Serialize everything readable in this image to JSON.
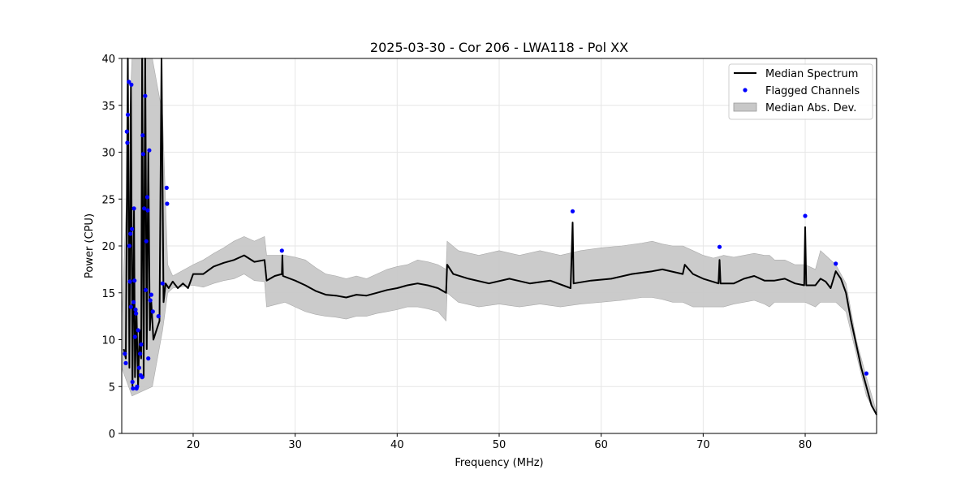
{
  "chart_data": {
    "type": "line",
    "title": "2025-03-30 - Cor 206 - LWA118 - Pol XX",
    "xlabel": "Frequency (MHz)",
    "ylabel": "Power (CPU)",
    "xlim": [
      13,
      87
    ],
    "ylim": [
      0,
      40
    ],
    "xticks": [
      20,
      30,
      40,
      50,
      60,
      70,
      80
    ],
    "yticks": [
      0,
      5,
      10,
      15,
      20,
      25,
      30,
      35,
      40
    ],
    "grid": true,
    "legend_position": "top-right",
    "legend": [
      {
        "label": "Median Spectrum",
        "kind": "line",
        "color": "#000000"
      },
      {
        "label": "Flagged Channels",
        "kind": "marker",
        "color": "#0000ff"
      },
      {
        "label": "Median Abs. Dev.",
        "kind": "patch",
        "color": "#c8c8c8"
      }
    ],
    "series": [
      {
        "name": "Median Spectrum",
        "color": "#000000",
        "points": [
          [
            13.2,
            9
          ],
          [
            13.4,
            8
          ],
          [
            13.6,
            40
          ],
          [
            13.75,
            7
          ],
          [
            13.9,
            37
          ],
          [
            14.05,
            5
          ],
          [
            14.2,
            24
          ],
          [
            14.3,
            6
          ],
          [
            14.45,
            13
          ],
          [
            14.6,
            5
          ],
          [
            14.75,
            11
          ],
          [
            14.9,
            8
          ],
          [
            15.0,
            40
          ],
          [
            15.15,
            6
          ],
          [
            15.3,
            40
          ],
          [
            15.45,
            9
          ],
          [
            15.6,
            30
          ],
          [
            15.75,
            11
          ],
          [
            15.9,
            14
          ],
          [
            16.1,
            10
          ],
          [
            16.4,
            11
          ],
          [
            16.7,
            12
          ],
          [
            16.9,
            40
          ],
          [
            17.1,
            14
          ],
          [
            17.3,
            16
          ],
          [
            17.6,
            15.5
          ],
          [
            18,
            16.2
          ],
          [
            18.5,
            15.5
          ],
          [
            19,
            16
          ],
          [
            19.5,
            15.5
          ],
          [
            20,
            17
          ],
          [
            21,
            17
          ],
          [
            22,
            17.8
          ],
          [
            23,
            18.2
          ],
          [
            24,
            18.5
          ],
          [
            25,
            19
          ],
          [
            26,
            18.3
          ],
          [
            27,
            18.5
          ],
          [
            27.2,
            16.3
          ],
          [
            28,
            16.8
          ],
          [
            28.7,
            17
          ],
          [
            28.75,
            19
          ],
          [
            28.8,
            16.8
          ],
          [
            30,
            16.3
          ],
          [
            31,
            15.8
          ],
          [
            32,
            15.2
          ],
          [
            33,
            14.8
          ],
          [
            34,
            14.7
          ],
          [
            35,
            14.5
          ],
          [
            36,
            14.8
          ],
          [
            37,
            14.7
          ],
          [
            38,
            15
          ],
          [
            39,
            15.3
          ],
          [
            40,
            15.5
          ],
          [
            41,
            15.8
          ],
          [
            42,
            16
          ],
          [
            43,
            15.8
          ],
          [
            44,
            15.5
          ],
          [
            44.8,
            15
          ],
          [
            44.9,
            18
          ],
          [
            45.5,
            17
          ],
          [
            47,
            16.5
          ],
          [
            49,
            16
          ],
          [
            51,
            16.5
          ],
          [
            53,
            16
          ],
          [
            55,
            16.3
          ],
          [
            57,
            15.5
          ],
          [
            57.2,
            22.5
          ],
          [
            57.3,
            16
          ],
          [
            59,
            16.3
          ],
          [
            61,
            16.5
          ],
          [
            63,
            17
          ],
          [
            65,
            17.3
          ],
          [
            66,
            17.5
          ],
          [
            68,
            17
          ],
          [
            68.2,
            18
          ],
          [
            69,
            17
          ],
          [
            70,
            16.5
          ],
          [
            71.5,
            16
          ],
          [
            71.6,
            18.5
          ],
          [
            71.7,
            16
          ],
          [
            73,
            16
          ],
          [
            74,
            16.5
          ],
          [
            75,
            16.8
          ],
          [
            76,
            16.3
          ],
          [
            77,
            16.3
          ],
          [
            78,
            16.5
          ],
          [
            79,
            16
          ],
          [
            79.9,
            15.8
          ],
          [
            80,
            22
          ],
          [
            80.1,
            15.8
          ],
          [
            81,
            15.8
          ],
          [
            81.5,
            16.5
          ],
          [
            82,
            16.2
          ],
          [
            82.5,
            15.5
          ],
          [
            83,
            17.3
          ],
          [
            83.5,
            16.5
          ],
          [
            84,
            15
          ],
          [
            84.5,
            12
          ],
          [
            85,
            9.5
          ],
          [
            85.5,
            7
          ],
          [
            86,
            5
          ],
          [
            86.5,
            3
          ],
          [
            87,
            2
          ]
        ]
      },
      {
        "name": "Median Abs. Dev.",
        "color": "#c8c8c8",
        "upper": [
          [
            13,
            12
          ],
          [
            14,
            40
          ],
          [
            16,
            40
          ],
          [
            17,
            34
          ],
          [
            17.5,
            18
          ],
          [
            18,
            16.8
          ],
          [
            20,
            18
          ],
          [
            21,
            18.5
          ],
          [
            22,
            19.2
          ],
          [
            23,
            19.8
          ],
          [
            24,
            20.5
          ],
          [
            25,
            21
          ],
          [
            26,
            20.5
          ],
          [
            27,
            21
          ],
          [
            27.2,
            19
          ],
          [
            29,
            19
          ],
          [
            30,
            18.8
          ],
          [
            31,
            18.5
          ],
          [
            32,
            17.7
          ],
          [
            33,
            17
          ],
          [
            34,
            16.8
          ],
          [
            35,
            16.5
          ],
          [
            36,
            16.8
          ],
          [
            37,
            16.5
          ],
          [
            38,
            17
          ],
          [
            39,
            17.5
          ],
          [
            40,
            17.8
          ],
          [
            41,
            18
          ],
          [
            42,
            18.5
          ],
          [
            43,
            18.3
          ],
          [
            44,
            18
          ],
          [
            44.8,
            17.5
          ],
          [
            44.9,
            20.5
          ],
          [
            46,
            19.5
          ],
          [
            48,
            19
          ],
          [
            50,
            19.5
          ],
          [
            52,
            19
          ],
          [
            54,
            19.5
          ],
          [
            56,
            19
          ],
          [
            58,
            19.5
          ],
          [
            60,
            19.8
          ],
          [
            62,
            20
          ],
          [
            64,
            20.3
          ],
          [
            65,
            20.5
          ],
          [
            66,
            20.2
          ],
          [
            67,
            20
          ],
          [
            68,
            20
          ],
          [
            69,
            19.5
          ],
          [
            70,
            19
          ],
          [
            71,
            18.7
          ],
          [
            72,
            19
          ],
          [
            73,
            18.8
          ],
          [
            74,
            19
          ],
          [
            75,
            19.2
          ],
          [
            76,
            19
          ],
          [
            76.5,
            19
          ],
          [
            77,
            18.5
          ],
          [
            78,
            18.5
          ],
          [
            79,
            18
          ],
          [
            80,
            18
          ],
          [
            81,
            17.5
          ],
          [
            81.5,
            19.5
          ],
          [
            82,
            19
          ],
          [
            83,
            18
          ],
          [
            84,
            16
          ],
          [
            85,
            10
          ],
          [
            86,
            6
          ],
          [
            87,
            2.3
          ]
        ],
        "lower": [
          [
            13,
            7
          ],
          [
            14,
            4
          ],
          [
            16,
            5
          ],
          [
            17,
            11
          ],
          [
            17.5,
            15
          ],
          [
            18,
            15.5
          ],
          [
            20,
            15.8
          ],
          [
            21,
            15.6
          ],
          [
            22,
            16
          ],
          [
            23,
            16.3
          ],
          [
            24,
            16.5
          ],
          [
            25,
            17
          ],
          [
            26,
            16.3
          ],
          [
            27,
            16.2
          ],
          [
            27.2,
            13.5
          ],
          [
            29,
            14
          ],
          [
            30,
            13.5
          ],
          [
            31,
            13
          ],
          [
            32,
            12.7
          ],
          [
            33,
            12.5
          ],
          [
            34,
            12.4
          ],
          [
            35,
            12.2
          ],
          [
            36,
            12.5
          ],
          [
            37,
            12.5
          ],
          [
            38,
            12.8
          ],
          [
            39,
            13
          ],
          [
            40,
            13.2
          ],
          [
            41,
            13.5
          ],
          [
            42,
            13.5
          ],
          [
            43,
            13.3
          ],
          [
            44,
            13
          ],
          [
            44.8,
            12
          ],
          [
            44.9,
            15
          ],
          [
            46,
            14
          ],
          [
            48,
            13.5
          ],
          [
            50,
            13.8
          ],
          [
            52,
            13.5
          ],
          [
            54,
            13.8
          ],
          [
            56,
            13.5
          ],
          [
            58,
            13.8
          ],
          [
            60,
            14
          ],
          [
            62,
            14.2
          ],
          [
            64,
            14.5
          ],
          [
            65,
            14.5
          ],
          [
            66,
            14.3
          ],
          [
            67,
            14
          ],
          [
            68,
            14
          ],
          [
            69,
            13.5
          ],
          [
            70,
            13.5
          ],
          [
            71,
            13.5
          ],
          [
            72,
            13.5
          ],
          [
            73,
            13.8
          ],
          [
            74,
            14
          ],
          [
            75,
            14.2
          ],
          [
            76,
            13.8
          ],
          [
            76.5,
            13.5
          ],
          [
            77,
            14
          ],
          [
            78,
            14
          ],
          [
            79,
            14
          ],
          [
            80,
            14
          ],
          [
            81,
            13.5
          ],
          [
            81.5,
            14
          ],
          [
            82,
            14
          ],
          [
            83,
            14
          ],
          [
            84,
            13
          ],
          [
            85,
            8.5
          ],
          [
            86,
            4
          ],
          [
            87,
            1.9
          ]
        ]
      },
      {
        "name": "Flagged Channels",
        "color": "#0000ff",
        "points": [
          [
            13.3,
            8.5
          ],
          [
            13.4,
            7.5
          ],
          [
            13.5,
            32.2
          ],
          [
            13.55,
            31
          ],
          [
            13.6,
            34
          ],
          [
            13.7,
            37.5
          ],
          [
            13.75,
            20
          ],
          [
            13.8,
            16.2
          ],
          [
            13.85,
            21.3
          ],
          [
            13.9,
            13.5
          ],
          [
            13.95,
            37.2
          ],
          [
            14.0,
            21.8
          ],
          [
            14.05,
            5.5
          ],
          [
            14.1,
            4.8
          ],
          [
            14.15,
            14
          ],
          [
            14.2,
            24
          ],
          [
            14.25,
            16.3
          ],
          [
            14.3,
            10.3
          ],
          [
            14.35,
            13.2
          ],
          [
            14.4,
            12.8
          ],
          [
            14.45,
            4.8
          ],
          [
            14.5,
            5
          ],
          [
            14.6,
            11
          ],
          [
            14.7,
            7
          ],
          [
            14.8,
            8.5
          ],
          [
            14.85,
            6.2
          ],
          [
            14.9,
            9.5
          ],
          [
            15.0,
            6
          ],
          [
            15.05,
            31.8
          ],
          [
            15.1,
            29.8
          ],
          [
            15.2,
            24
          ],
          [
            15.3,
            36
          ],
          [
            15.35,
            15.3
          ],
          [
            15.4,
            20.5
          ],
          [
            15.5,
            25.2
          ],
          [
            15.55,
            23.8
          ],
          [
            15.6,
            8
          ],
          [
            15.7,
            30.2
          ],
          [
            15.8,
            14.2
          ],
          [
            15.9,
            14.8
          ],
          [
            16.05,
            13
          ],
          [
            16.6,
            12.5
          ],
          [
            17.0,
            16
          ],
          [
            17.4,
            26.2
          ],
          [
            17.45,
            24.5
          ],
          [
            28.7,
            19.5
          ],
          [
            57.2,
            23.7
          ],
          [
            71.6,
            19.9
          ],
          [
            80.0,
            23.2
          ],
          [
            83.0,
            18.1
          ],
          [
            86.0,
            6.4
          ]
        ]
      }
    ]
  }
}
